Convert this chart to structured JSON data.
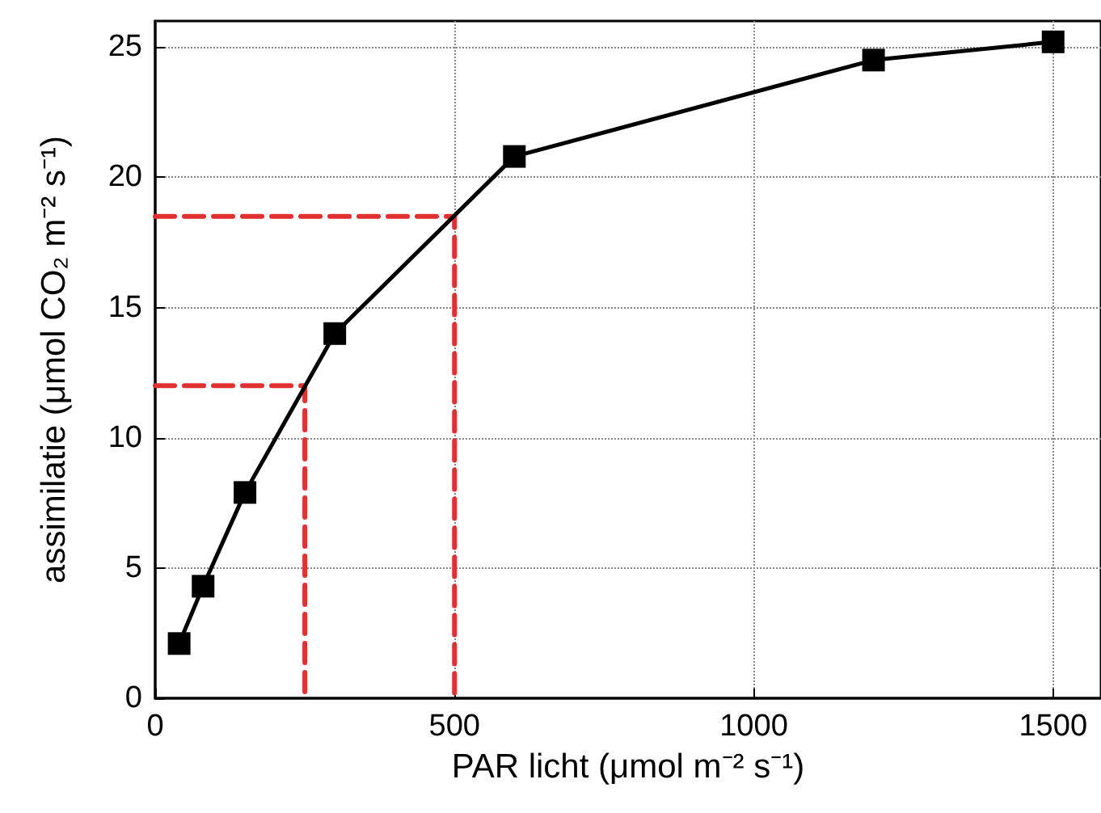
{
  "chart_data": {
    "type": "line",
    "xlabel": "PAR licht (μmol m⁻² s⁻¹)",
    "ylabel": "assimilatie (μmol CO₂ m⁻² s⁻¹)",
    "xlim": [
      0,
      1580
    ],
    "xticks": [
      0,
      500,
      1000,
      1500
    ],
    "ylim": [
      0,
      26
    ],
    "yticks": [
      0,
      5,
      10,
      15,
      20,
      25
    ],
    "grid": true,
    "marker": "square",
    "line_style": "solid",
    "series": [
      {
        "color": "#000000",
        "x": [
          40,
          80,
          150,
          300,
          600,
          1200,
          1500
        ],
        "values": [
          2.1,
          4.3,
          7.9,
          14.0,
          20.8,
          24.5,
          25.2
        ]
      },
      {
        "color": "#e03030",
        "x": [
          0,
          250,
          250
        ],
        "values": [
          12,
          12,
          0
        ],
        "marker": "none",
        "line_style": "dashed"
      },
      {
        "color": "#e03030",
        "x": [
          0,
          500,
          500
        ],
        "values": [
          18.5,
          18.5,
          0
        ],
        "marker": "none",
        "line_style": "dashed"
      }
    ]
  }
}
